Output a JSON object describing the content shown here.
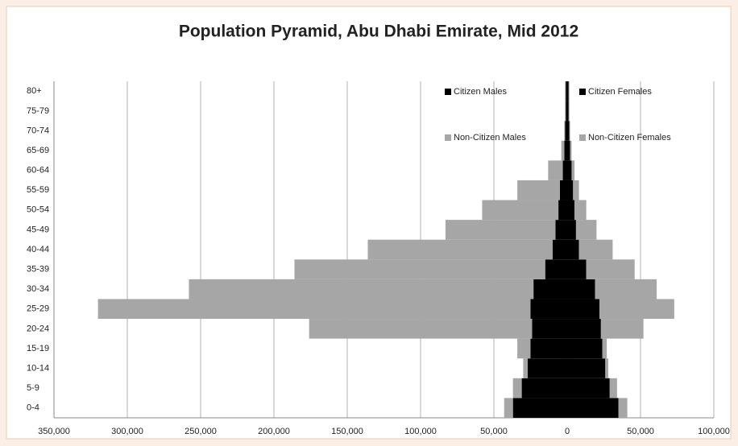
{
  "chart_data": {
    "type": "bar",
    "orientation": "horizontal",
    "stacked": true,
    "title": "Population Pyramid, Abu Dhabi Emirate, Mid 2012",
    "categories": [
      "0-4",
      "5-9",
      "10-14",
      "15-19",
      "20-24",
      "25-29",
      "30-34",
      "35-39",
      "40-44",
      "45-49",
      "50-54",
      "55-59",
      "60-64",
      "65-69",
      "70-74",
      "75-79",
      "80+"
    ],
    "series": [
      {
        "name": "Citizen Males",
        "color": "#000000",
        "values": [
          -37000,
          -31000,
          -27000,
          -25000,
          -24000,
          -25000,
          -23000,
          -15000,
          -10000,
          -8000,
          -6000,
          -5000,
          -3000,
          -2000,
          -1500,
          -1000,
          -1000
        ]
      },
      {
        "name": "Citizen Females",
        "color": "#000000",
        "values": [
          35000,
          29000,
          26000,
          24000,
          23000,
          22000,
          19000,
          13000,
          8000,
          6000,
          5000,
          4000,
          3000,
          2000,
          1500,
          1000,
          1000
        ]
      },
      {
        "name": "Non-Citizen Males",
        "color": "#a6a6a6",
        "values": [
          -6000,
          -6000,
          -3000,
          -9000,
          -152000,
          -295000,
          -235000,
          -171000,
          -126000,
          -75000,
          -52000,
          -29000,
          -10000,
          -2000,
          -500,
          -500,
          -500
        ]
      },
      {
        "name": "Non-Citizen Females",
        "color": "#a6a6a6",
        "values": [
          6000,
          5000,
          2000,
          3000,
          29000,
          51000,
          42000,
          33000,
          23000,
          14000,
          8000,
          4000,
          2000,
          1000,
          500,
          500,
          500
        ]
      }
    ],
    "xlim": [
      -350000,
      100000
    ],
    "xticks": [
      {
        "value": -350000,
        "label": "350,000"
      },
      {
        "value": -300000,
        "label": "300,000"
      },
      {
        "value": -250000,
        "label": "250,000"
      },
      {
        "value": -200000,
        "label": "200,000"
      },
      {
        "value": -150000,
        "label": "150,000"
      },
      {
        "value": -100000,
        "label": "100,000"
      },
      {
        "value": -50000,
        "label": "50,000"
      },
      0,
      {
        "value": 50000,
        "label": "50,000"
      },
      {
        "value": 100000,
        "label": "100,000"
      }
    ],
    "grid": true
  }
}
